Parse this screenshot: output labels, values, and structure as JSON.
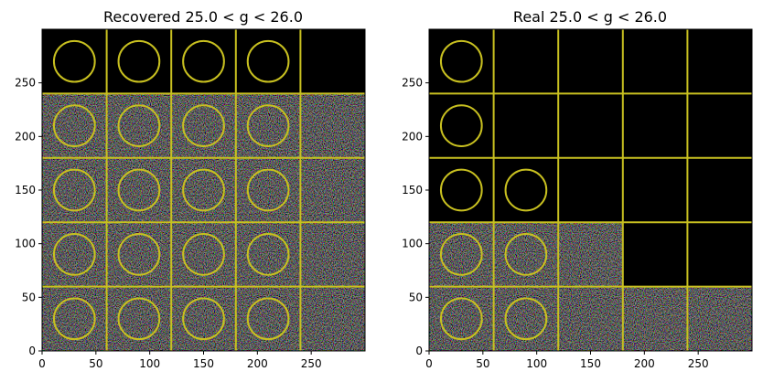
{
  "chart_data": [
    {
      "type": "image",
      "title": "Recovered 25.0 < g < 26.0",
      "xlim": [
        0,
        300
      ],
      "ylim": [
        0,
        300
      ],
      "xticks": [
        0,
        50,
        100,
        150,
        200,
        250
      ],
      "yticks": [
        0,
        50,
        100,
        150,
        200,
        250
      ],
      "grid": "5x5 cutout grid, cell size 60, yellow separators",
      "rows": [
        {
          "y": [
            240,
            300
          ],
          "cells": [
            "blank+circle",
            "blank+circle",
            "blank+circle",
            "blank+circle",
            "blank"
          ]
        },
        {
          "y": [
            180,
            240
          ],
          "cells": [
            "noise+circle",
            "noise+circle",
            "noise+circle",
            "noise+circle",
            "noise"
          ]
        },
        {
          "y": [
            120,
            180
          ],
          "cells": [
            "noise+circle",
            "noise+circle",
            "noise+circle",
            "noise+circle",
            "noise"
          ]
        },
        {
          "y": [
            60,
            120
          ],
          "cells": [
            "noise+circle",
            "noise+circle",
            "noise+circle",
            "noise+circle",
            "noise"
          ]
        },
        {
          "y": [
            0,
            60
          ],
          "cells": [
            "noise+circle",
            "noise+circle",
            "noise+circle",
            "noise+circle",
            "noise"
          ]
        }
      ],
      "circle_radius": 19,
      "colors": {
        "grid": "#c8c020",
        "circle": "#c8c020",
        "blank": "#000000"
      }
    },
    {
      "type": "image",
      "title": "Real 25.0 < g < 26.0",
      "xlim": [
        0,
        300
      ],
      "ylim": [
        0,
        300
      ],
      "xticks": [
        0,
        50,
        100,
        150,
        200,
        250
      ],
      "yticks": [
        0,
        50,
        100,
        150,
        200,
        250
      ],
      "grid": "5x5 cutout grid, cell size 60, yellow separators",
      "rows": [
        {
          "y": [
            240,
            300
          ],
          "cells": [
            "blank+circle",
            "blank",
            "blank",
            "blank",
            "blank"
          ]
        },
        {
          "y": [
            180,
            240
          ],
          "cells": [
            "blank+circle",
            "blank",
            "blank",
            "blank",
            "blank"
          ]
        },
        {
          "y": [
            120,
            180
          ],
          "cells": [
            "blank+circle",
            "blank+circle",
            "blank",
            "blank",
            "blank"
          ]
        },
        {
          "y": [
            60,
            120
          ],
          "cells": [
            "noise+circle",
            "noise+circle",
            "noise",
            "blank",
            "blank"
          ]
        },
        {
          "y": [
            0,
            60
          ],
          "cells": [
            "noise+circle",
            "noise+circle",
            "noise",
            "noise",
            "noise"
          ]
        }
      ],
      "circle_radius": 19,
      "colors": {
        "grid": "#c8c020",
        "circle": "#c8c020",
        "blank": "#000000"
      }
    }
  ]
}
